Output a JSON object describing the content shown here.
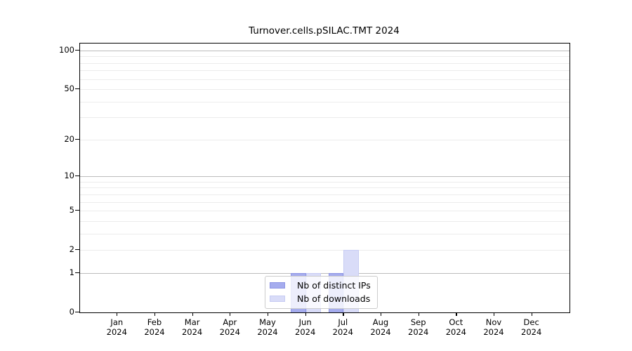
{
  "chart_data": {
    "type": "bar",
    "title": "Turnover.cells.pSILAC.TMT 2024",
    "x_months": [
      "Jan",
      "Feb",
      "Mar",
      "Apr",
      "May",
      "Jun",
      "Jul",
      "Aug",
      "Sep",
      "Oct",
      "Nov",
      "Dec"
    ],
    "x_year": "2024",
    "series": [
      {
        "name": "Nb of distinct IPs",
        "color": "#a5acee",
        "edge_color": "#8d95e4",
        "values": [
          0,
          0,
          0,
          0,
          0,
          1,
          1,
          0,
          0,
          0,
          0,
          0
        ]
      },
      {
        "name": "Nb of downloads",
        "color": "#d9dcf8",
        "edge_color": "#c7ccf3",
        "values": [
          0,
          0,
          0,
          0,
          0,
          1,
          2,
          0,
          0,
          0,
          0,
          0
        ]
      }
    ],
    "yscale": "log1p",
    "ylim": [
      0,
      113
    ],
    "ytick_labels": [
      0,
      1,
      2,
      5,
      10,
      20,
      50,
      100
    ],
    "grid_major": [
      1,
      10,
      100
    ],
    "grid_minor": [
      2,
      3,
      4,
      5,
      6,
      7,
      8,
      9,
      20,
      30,
      40,
      50,
      60,
      70,
      80,
      90
    ],
    "grid": true,
    "legend_position": "lower-center"
  }
}
